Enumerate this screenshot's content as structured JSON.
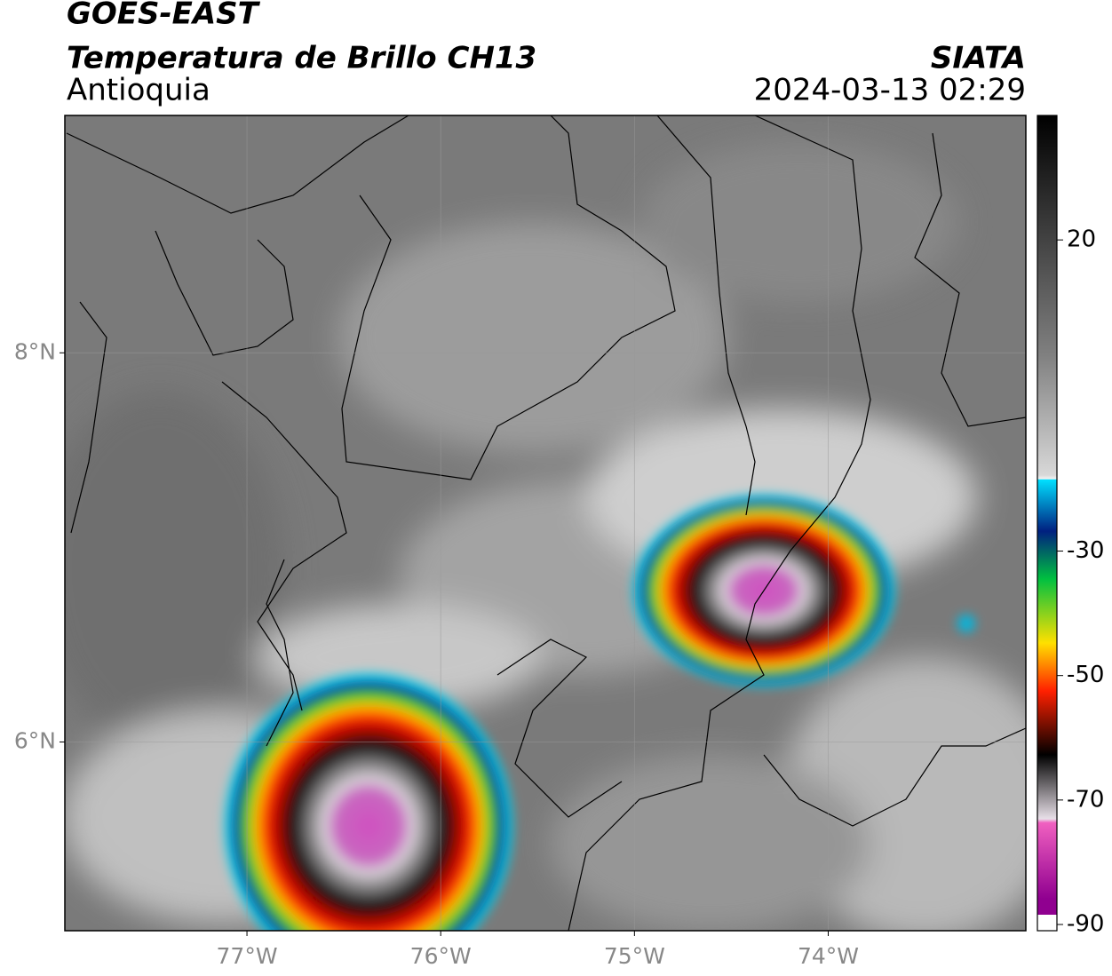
{
  "header": {
    "title": "GOES-EAST",
    "subtitle": "Temperatura de Brillo CH13",
    "region": "Antioquia",
    "source": "SIATA",
    "datetime": "2024-03-13 02:29"
  },
  "map": {
    "xlim": [
      -77.94,
      -72.98
    ],
    "ylim": [
      5.03,
      9.22
    ],
    "xticks": [
      {
        "value": -77,
        "label": "77°W"
      },
      {
        "value": -76,
        "label": "76°W"
      },
      {
        "value": -75,
        "label": "75°W"
      },
      {
        "value": -74,
        "label": "74°W"
      }
    ],
    "yticks": [
      {
        "value": 6,
        "label": "6°N"
      },
      {
        "value": 8,
        "label": "8°N"
      }
    ],
    "grid": true
  },
  "colorbar": {
    "lim": [
      -91,
      40
    ],
    "ticks": [
      20,
      -30,
      -50,
      -70,
      -90
    ]
  }
}
